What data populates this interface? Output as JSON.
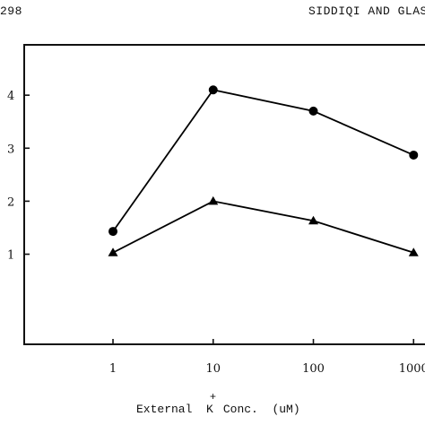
{
  "page": {
    "page_number": "298",
    "running_head": "SIDDIQI AND GLAS"
  },
  "chart_data": {
    "type": "line",
    "title": "",
    "xlabel": "External K+ Conc. (uM)",
    "xlabel_parts": {
      "before_k": "External  K",
      "superscript": "+",
      "after_k": "Conc.  (uM)"
    },
    "ylabel": "",
    "x_scale": "log",
    "x_ticks": [
      1,
      10,
      100,
      1000
    ],
    "x_tick_labels": [
      "1",
      "10",
      "100",
      "1000"
    ],
    "y_ticks": [
      1,
      2,
      3,
      4
    ],
    "y_tick_labels": [
      "1",
      "2",
      "3",
      "4"
    ],
    "xlim": [
      0.13,
      1300
    ],
    "ylim": [
      -0.7,
      4.95
    ],
    "grid": false,
    "legend": "none",
    "x": [
      1,
      10,
      100,
      1000
    ],
    "series": [
      {
        "marker": "circle",
        "color": "#000000",
        "values": [
          1.43,
          4.1,
          3.7,
          2.87
        ]
      },
      {
        "marker": "triangle",
        "color": "#000000",
        "values": [
          1.03,
          2.0,
          1.63,
          1.03
        ]
      }
    ]
  }
}
